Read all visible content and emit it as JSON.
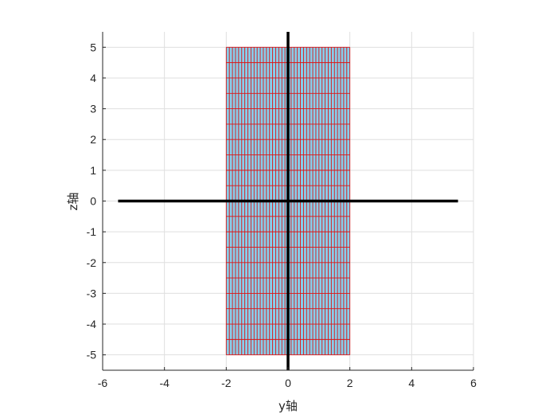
{
  "chart_data": {
    "type": "mesh",
    "xlabel": "y轴",
    "ylabel": "z轴",
    "xlim": [
      -6,
      6
    ],
    "ylim": [
      -5.5,
      5.5
    ],
    "xticks": [
      -6,
      -4,
      -2,
      0,
      2,
      4,
      6
    ],
    "yticks": [
      -5,
      -4,
      -3,
      -2,
      -1,
      0,
      1,
      2,
      3,
      4,
      5
    ],
    "grid": true,
    "surface": {
      "y_range": [
        -2,
        2
      ],
      "z_range": [
        -5,
        5
      ],
      "y_divisions": 40,
      "z_divisions": 20,
      "face_color": "#87ceeb",
      "edge_color": "#dc1414"
    },
    "reference_lines": [
      {
        "name": "horizontal axis",
        "x": [
          -5.5,
          5.5
        ],
        "y": [
          0,
          0
        ],
        "color": "#000000"
      },
      {
        "name": "vertical axis",
        "x": [
          0,
          0
        ],
        "y": [
          -5.5,
          5.5
        ],
        "color": "#000000"
      }
    ]
  },
  "colors": {
    "grid": "#dfdfdf",
    "axes": "#262626"
  }
}
